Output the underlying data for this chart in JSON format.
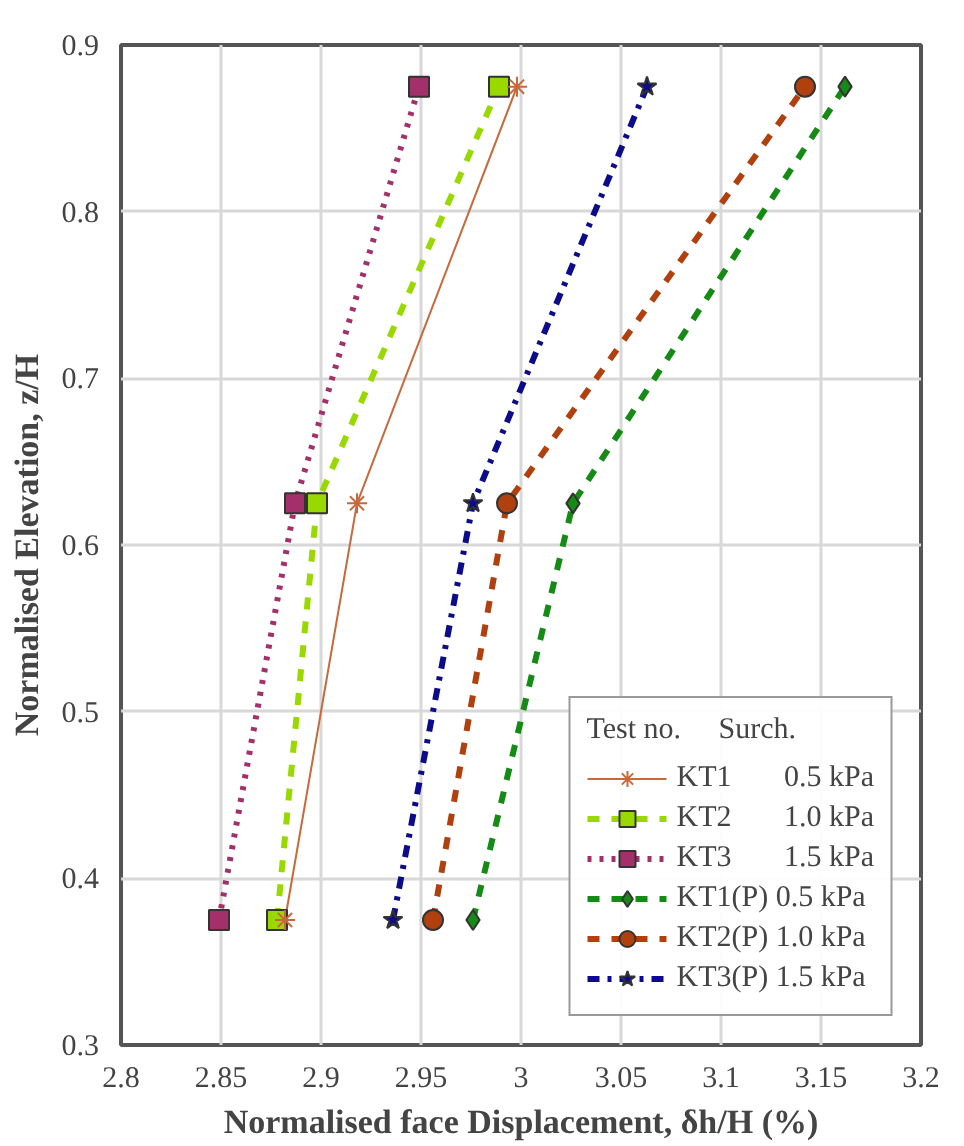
{
  "chart_data": {
    "type": "line",
    "xlabel": "Normalised face Displacement, δh/H (%)",
    "ylabel": "Normalised Elevation, z/H",
    "legend_title": "Test no.     Surch.",
    "xlim": [
      2.8,
      3.2
    ],
    "xticks": [
      2.8,
      2.85,
      2.9,
      2.95,
      3,
      3.05,
      3.1,
      3.15,
      3.2
    ],
    "ylim": [
      0.3,
      0.9
    ],
    "yticks": [
      0.3,
      0.4,
      0.5,
      0.6,
      0.7,
      0.8,
      0.9
    ],
    "grid": true,
    "legend": "bottom right",
    "series": [
      {
        "name": "KT1       0.5 kPa",
        "color": "#c8693c",
        "marker": "cross",
        "line_style": "solid",
        "x": [
          2.882,
          2.918,
          2.998
        ],
        "values": [
          0.375,
          0.625,
          0.875
        ]
      },
      {
        "name": "KT2       1.0 kPa",
        "color": "#99d900",
        "marker": "square",
        "line_style": "dashed",
        "x": [
          2.878,
          2.898,
          2.989
        ],
        "values": [
          0.375,
          0.625,
          0.875
        ]
      },
      {
        "name": "KT3       1.5 kPa",
        "color": "#a3306b",
        "marker": "square",
        "line_style": "dotted",
        "x": [
          2.849,
          2.887,
          2.949
        ],
        "values": [
          0.375,
          0.625,
          0.875
        ]
      },
      {
        "name": "KT1(P) 0.5 kPa",
        "color": "#158a15",
        "marker": "diamond",
        "line_style": "dashed",
        "x": [
          2.976,
          3.026,
          3.162
        ],
        "values": [
          0.375,
          0.625,
          0.875
        ]
      },
      {
        "name": "KT2(P) 1.0 kPa",
        "color": "#b0400e",
        "marker": "circle",
        "line_style": "dashed",
        "x": [
          2.956,
          2.993,
          3.142
        ],
        "values": [
          0.375,
          0.625,
          0.875
        ]
      },
      {
        "name": "KT3(P) 1.5 kPa",
        "color": "#0c0c8a",
        "marker": "star",
        "line_style": "dashdot",
        "x": [
          2.936,
          2.976,
          3.063
        ],
        "values": [
          0.375,
          0.625,
          0.875
        ]
      }
    ]
  }
}
